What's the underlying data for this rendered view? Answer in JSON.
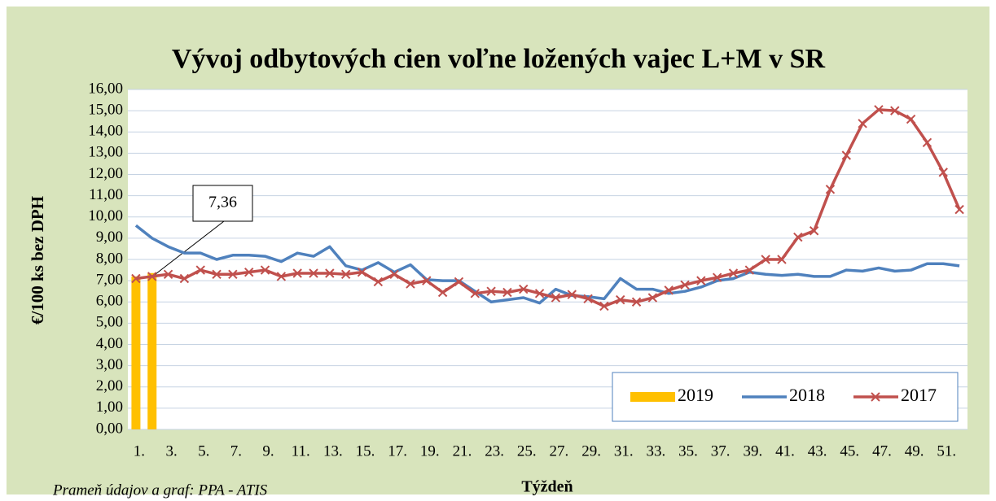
{
  "chart_data": {
    "type": "line",
    "title": "Vývoj odbytových cien voľne ložených vajec L+M v SR",
    "x_label": "Týždeň",
    "y_label": "€/100 ks bez DPH",
    "source": "Prameň údajov a graf: PPA - ATIS",
    "categories": [
      "1.",
      null,
      "3.",
      null,
      "5.",
      null,
      "7.",
      null,
      "9.",
      null,
      "11.",
      null,
      "13.",
      null,
      "15.",
      null,
      "17.",
      null,
      "19.",
      null,
      "21.",
      null,
      "23.",
      null,
      "25.",
      null,
      "27.",
      null,
      "29.",
      null,
      "31.",
      null,
      "33.",
      null,
      "35.",
      null,
      "37.",
      null,
      "39.",
      null,
      "41.",
      null,
      "43.",
      null,
      "45.",
      null,
      "47.",
      null,
      "49.",
      null,
      "51.",
      null
    ],
    "ylim": [
      0,
      16
    ],
    "yticks": [
      {
        "value": 0,
        "label": "0,00"
      },
      {
        "value": 1,
        "label": "1,00"
      },
      {
        "value": 2,
        "label": "2,00"
      },
      {
        "value": 3,
        "label": "3,00"
      },
      {
        "value": 4,
        "label": "4,00"
      },
      {
        "value": 5,
        "label": "5,00"
      },
      {
        "value": 6,
        "label": "6,00"
      },
      {
        "value": 7,
        "label": "7,00"
      },
      {
        "value": 8,
        "label": "8,00"
      },
      {
        "value": 9,
        "label": "9,00"
      },
      {
        "value": 10,
        "label": "10,00"
      },
      {
        "value": 11,
        "label": "11,00"
      },
      {
        "value": 12,
        "label": "12,00"
      },
      {
        "value": 13,
        "label": "13,00"
      },
      {
        "value": 14,
        "label": "14,00"
      },
      {
        "value": 15,
        "label": "15,00"
      },
      {
        "value": 16,
        "label": "16,00"
      }
    ],
    "grid": true,
    "legend": "lower right",
    "series": [
      {
        "name": "2019",
        "type": "bar",
        "color": "#ffc000",
        "values": [
          7.2,
          7.36,
          null,
          null,
          null,
          null,
          null,
          null,
          null,
          null,
          null,
          null,
          null,
          null,
          null,
          null,
          null,
          null,
          null,
          null,
          null,
          null,
          null,
          null,
          null,
          null,
          null,
          null,
          null,
          null,
          null,
          null,
          null,
          null,
          null,
          null,
          null,
          null,
          null,
          null,
          null,
          null,
          null,
          null,
          null,
          null,
          null,
          null,
          null,
          null,
          null,
          null
        ],
        "value_labels": [
          null,
          "7,36",
          null,
          null,
          null,
          null,
          null,
          null,
          null,
          null,
          null,
          null,
          null,
          null,
          null,
          null,
          null,
          null,
          null,
          null,
          null,
          null,
          null,
          null,
          null,
          null,
          null,
          null,
          null,
          null,
          null,
          null,
          null,
          null,
          null,
          null,
          null,
          null,
          null,
          null,
          null,
          null,
          null,
          null,
          null,
          null,
          null,
          null,
          null,
          null,
          null,
          null
        ]
      },
      {
        "name": "2018",
        "type": "line",
        "color": "#4f81bd",
        "values": [
          9.6,
          9.0,
          8.6,
          8.3,
          8.3,
          8.0,
          8.2,
          8.2,
          8.15,
          7.9,
          8.3,
          8.15,
          8.6,
          7.7,
          7.5,
          7.85,
          7.4,
          7.75,
          7.05,
          7.0,
          7.0,
          6.5,
          6.0,
          6.1,
          6.2,
          5.95,
          6.6,
          6.3,
          6.25,
          6.15,
          7.1,
          6.6,
          6.6,
          6.4,
          6.5,
          6.7,
          7.0,
          7.1,
          7.4,
          7.3,
          7.25,
          7.3,
          7.2,
          7.2,
          7.5,
          7.45,
          7.6,
          7.45,
          7.5,
          7.8,
          7.8,
          7.7
        ]
      },
      {
        "name": "2017",
        "type": "line",
        "marker": "x",
        "color": "#c0504d",
        "values": [
          7.1,
          7.2,
          7.3,
          7.1,
          7.5,
          7.3,
          7.3,
          7.4,
          7.5,
          7.2,
          7.35,
          7.35,
          7.35,
          7.3,
          7.4,
          6.95,
          7.3,
          6.85,
          7.0,
          6.45,
          6.95,
          6.4,
          6.5,
          6.45,
          6.6,
          6.4,
          6.2,
          6.35,
          6.15,
          5.8,
          6.1,
          6.0,
          6.2,
          6.55,
          6.8,
          7.0,
          7.15,
          7.35,
          7.5,
          8.0,
          8.0,
          9.05,
          9.35,
          11.3,
          12.9,
          14.4,
          15.05,
          15.0,
          14.6,
          13.5,
          12.1,
          10.35
        ]
      }
    ]
  }
}
